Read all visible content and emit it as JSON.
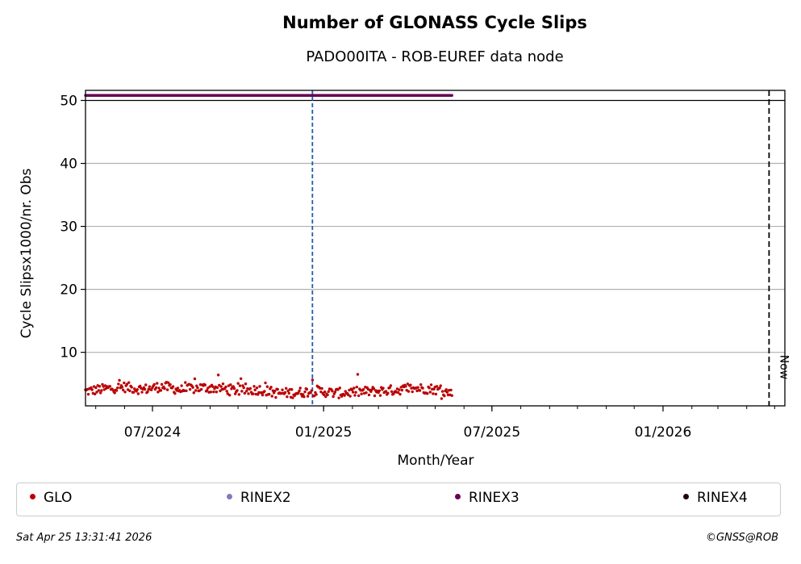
{
  "chart_data": {
    "type": "scatter",
    "title": "Number of GLONASS Cycle Slips",
    "subtitle": "PADO00ITA - ROB-EUREF data node",
    "xlabel": "Month/Year",
    "ylabel": "Cycle Slipsx1000/nr. Obs",
    "x_range": [
      "2024-04-20",
      "2026-05-12"
    ],
    "ylim": [
      1.5,
      51.6
    ],
    "y_ticks": [
      10,
      20,
      30,
      40,
      50
    ],
    "y_tick_labels": [
      "10",
      "20",
      "30",
      "40",
      "50"
    ],
    "x_ticks": [
      "2024-07-01",
      "2025-01-01",
      "2025-07-01",
      "2026-01-01"
    ],
    "x_tick_labels": [
      "07/2024",
      "01/2025",
      "07/2025",
      "01/2026"
    ],
    "grid": "horizontal",
    "y_reference_line": 50,
    "vertical_markers": [
      {
        "date": "2024-12-20",
        "style": "dashed",
        "color": "#1f5fa8",
        "label": ""
      },
      {
        "date": "2026-04-25",
        "style": "dashed",
        "color": "#000000",
        "label": "Now"
      }
    ],
    "series": [
      {
        "name": "GLO",
        "color": "#bb0000",
        "x_start": "2024-04-20",
        "x_end": "2025-05-19",
        "anchor_values": [
          3.8,
          4.2,
          4.5,
          4.1,
          4.6,
          4.0,
          4.4,
          4.3,
          3.9,
          4.1,
          3.5,
          3.6,
          3.9,
          3.5,
          3.7,
          3.8,
          4.0,
          4.3,
          4.2,
          3.5
        ],
        "count": 390
      },
      {
        "name": "RINEX3",
        "color": "#660055",
        "x_start": "2024-04-20",
        "x_end": "2025-05-19",
        "constant": 50.8,
        "count": 390
      }
    ],
    "legend": [
      {
        "name": "GLO",
        "color": "#bb0000"
      },
      {
        "name": "RINEX2",
        "color": "#8877bb"
      },
      {
        "name": "RINEX3",
        "color": "#660055"
      },
      {
        "name": "RINEX4",
        "color": "#220011"
      }
    ],
    "legend_position": "bottom"
  },
  "footer": {
    "timestamp": "Sat Apr 25 13:31:41 2026",
    "credit": "©GNSS@ROB"
  }
}
